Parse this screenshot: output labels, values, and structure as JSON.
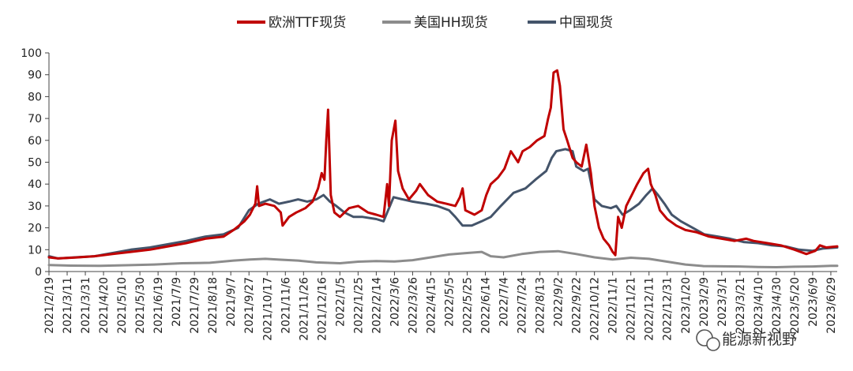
{
  "chart_data": {
    "type": "line",
    "title": "",
    "xlabel": "",
    "ylabel": "",
    "ylim": [
      0,
      100
    ],
    "y_ticks": [
      0,
      10,
      20,
      30,
      40,
      50,
      60,
      70,
      80,
      90,
      100
    ],
    "x_range": [
      "2021-02-19",
      "2023-07-06"
    ],
    "x_tick_labels": [
      "2021/2/19",
      "2021/3/11",
      "2021/3/31",
      "2021/4/20",
      "2021/5/10",
      "2021/5/30",
      "2021/6/19",
      "2021/7/9",
      "2021/7/29",
      "2021/8/18",
      "2021/9/7",
      "2021/9/27",
      "2021/10/17",
      "2021/11/6",
      "2021/11/26",
      "2021/12/16",
      "2022/1/5",
      "2022/1/25",
      "2022/2/14",
      "2022/3/6",
      "2022/3/26",
      "2022/4/15",
      "2022/5/5",
      "2022/5/25",
      "2022/6/14",
      "2022/7/4",
      "2022/7/24",
      "2022/8/13",
      "2022/9/2",
      "2022/9/22",
      "2022/10/12",
      "2022/11/1",
      "2022/11/21",
      "2022/12/11",
      "2022/12/31",
      "2023/1/20",
      "2023/2/9",
      "2023/3/1",
      "2023/3/21",
      "2023/4/10",
      "2023/4/30",
      "2023/5/20",
      "2023/6/9",
      "2023/6/29"
    ],
    "legend_position": "top-center",
    "grid": false,
    "series": [
      {
        "name": "欧洲TTF现货",
        "color": "#c00000",
        "points": [
          [
            "2021-02-19",
            6.5
          ],
          [
            "2021-03-01",
            6.0
          ],
          [
            "2021-03-20",
            6.4
          ],
          [
            "2021-04-10",
            7.0
          ],
          [
            "2021-04-30",
            8.0
          ],
          [
            "2021-05-20",
            9.0
          ],
          [
            "2021-06-10",
            10.0
          ],
          [
            "2021-06-30",
            11.5
          ],
          [
            "2021-07-20",
            13.0
          ],
          [
            "2021-08-10",
            15.0
          ],
          [
            "2021-08-30",
            16.0
          ],
          [
            "2021-09-10",
            19.0
          ],
          [
            "2021-09-22",
            23.0
          ],
          [
            "2021-09-28",
            26.0
          ],
          [
            "2021-10-04",
            31.0
          ],
          [
            "2021-10-06",
            39.0
          ],
          [
            "2021-10-08",
            30.0
          ],
          [
            "2021-10-15",
            31.0
          ],
          [
            "2021-10-25",
            30.0
          ],
          [
            "2021-11-01",
            27.0
          ],
          [
            "2021-11-03",
            21.0
          ],
          [
            "2021-11-10",
            25.0
          ],
          [
            "2021-11-18",
            27.0
          ],
          [
            "2021-11-28",
            29.0
          ],
          [
            "2021-12-06",
            32.0
          ],
          [
            "2021-12-12",
            38.0
          ],
          [
            "2021-12-16",
            45.0
          ],
          [
            "2021-12-19",
            42.0
          ],
          [
            "2021-12-21",
            60.0
          ],
          [
            "2021-12-23",
            74.0
          ],
          [
            "2021-12-26",
            35.0
          ],
          [
            "2021-12-30",
            27.0
          ],
          [
            "2022-01-05",
            25.0
          ],
          [
            "2022-01-15",
            29.0
          ],
          [
            "2022-01-25",
            30.0
          ],
          [
            "2022-02-05",
            27.0
          ],
          [
            "2022-02-14",
            26.0
          ],
          [
            "2022-02-22",
            25.0
          ],
          [
            "2022-02-26",
            40.0
          ],
          [
            "2022-02-28",
            30.0
          ],
          [
            "2022-03-03",
            60.0
          ],
          [
            "2022-03-07",
            69.0
          ],
          [
            "2022-03-10",
            46.0
          ],
          [
            "2022-03-15",
            38.0
          ],
          [
            "2022-03-22",
            33.0
          ],
          [
            "2022-03-30",
            37.0
          ],
          [
            "2022-04-03",
            40.0
          ],
          [
            "2022-04-12",
            35.0
          ],
          [
            "2022-04-22",
            32.0
          ],
          [
            "2022-05-02",
            31.0
          ],
          [
            "2022-05-12",
            30.0
          ],
          [
            "2022-05-17",
            34.0
          ],
          [
            "2022-05-20",
            38.0
          ],
          [
            "2022-05-23",
            28.0
          ],
          [
            "2022-06-02",
            26.0
          ],
          [
            "2022-06-10",
            28.0
          ],
          [
            "2022-06-15",
            35.0
          ],
          [
            "2022-06-20",
            40.0
          ],
          [
            "2022-06-28",
            43.0
          ],
          [
            "2022-07-05",
            47.0
          ],
          [
            "2022-07-12",
            55.0
          ],
          [
            "2022-07-20",
            50.0
          ],
          [
            "2022-07-25",
            55.0
          ],
          [
            "2022-08-02",
            57.0
          ],
          [
            "2022-08-10",
            60.0
          ],
          [
            "2022-08-18",
            62.0
          ],
          [
            "2022-08-22",
            70.0
          ],
          [
            "2022-08-25",
            75.0
          ],
          [
            "2022-08-28",
            91.0
          ],
          [
            "2022-09-01",
            92.0
          ],
          [
            "2022-09-04",
            85.0
          ],
          [
            "2022-09-08",
            65.0
          ],
          [
            "2022-09-12",
            60.0
          ],
          [
            "2022-09-18",
            52.0
          ],
          [
            "2022-09-22",
            50.0
          ],
          [
            "2022-09-28",
            48.0
          ],
          [
            "2022-10-03",
            58.0
          ],
          [
            "2022-10-08",
            45.0
          ],
          [
            "2022-10-12",
            30.0
          ],
          [
            "2022-10-17",
            20.0
          ],
          [
            "2022-10-22",
            15.0
          ],
          [
            "2022-10-28",
            12.0
          ],
          [
            "2022-11-01",
            9.0
          ],
          [
            "2022-11-04",
            7.5
          ],
          [
            "2022-11-07",
            25.0
          ],
          [
            "2022-11-11",
            20.0
          ],
          [
            "2022-11-16",
            30.0
          ],
          [
            "2022-11-22",
            35.0
          ],
          [
            "2022-11-28",
            40.0
          ],
          [
            "2022-12-05",
            45.0
          ],
          [
            "2022-12-10",
            47.0
          ],
          [
            "2022-12-13",
            40.0
          ],
          [
            "2022-12-18",
            35.0
          ],
          [
            "2022-12-23",
            28.0
          ],
          [
            "2022-12-31",
            24.0
          ],
          [
            "2023-01-10",
            21.0
          ],
          [
            "2023-01-20",
            19.0
          ],
          [
            "2023-02-01",
            18.0
          ],
          [
            "2023-02-15",
            16.0
          ],
          [
            "2023-03-01",
            15.0
          ],
          [
            "2023-03-15",
            14.0
          ],
          [
            "2023-03-28",
            15.0
          ],
          [
            "2023-04-05",
            14.0
          ],
          [
            "2023-04-20",
            13.0
          ],
          [
            "2023-05-05",
            12.0
          ],
          [
            "2023-05-20",
            10.0
          ],
          [
            "2023-06-02",
            8.0
          ],
          [
            "2023-06-12",
            9.5
          ],
          [
            "2023-06-17",
            12.0
          ],
          [
            "2023-06-24",
            11.0
          ],
          [
            "2023-07-06",
            11.5
          ]
        ]
      },
      {
        "name": "美国HH现货",
        "color": "#8c8c8c",
        "points": [
          [
            "2021-02-19",
            3.0
          ],
          [
            "2021-03-15",
            2.7
          ],
          [
            "2021-04-15",
            2.6
          ],
          [
            "2021-05-15",
            2.9
          ],
          [
            "2021-06-15",
            3.2
          ],
          [
            "2021-07-15",
            3.8
          ],
          [
            "2021-08-15",
            4.0
          ],
          [
            "2021-09-10",
            5.0
          ],
          [
            "2021-09-28",
            5.5
          ],
          [
            "2021-10-15",
            5.8
          ],
          [
            "2021-11-01",
            5.4
          ],
          [
            "2021-11-20",
            5.0
          ],
          [
            "2021-12-10",
            4.2
          ],
          [
            "2022-01-05",
            3.8
          ],
          [
            "2022-01-25",
            4.5
          ],
          [
            "2022-02-14",
            4.8
          ],
          [
            "2022-03-06",
            4.6
          ],
          [
            "2022-03-26",
            5.2
          ],
          [
            "2022-04-15",
            6.5
          ],
          [
            "2022-05-05",
            7.8
          ],
          [
            "2022-05-25",
            8.5
          ],
          [
            "2022-06-10",
            9.0
          ],
          [
            "2022-06-20",
            7.0
          ],
          [
            "2022-07-04",
            6.5
          ],
          [
            "2022-07-24",
            8.0
          ],
          [
            "2022-08-13",
            9.0
          ],
          [
            "2022-09-02",
            9.3
          ],
          [
            "2022-09-22",
            8.0
          ],
          [
            "2022-10-12",
            6.5
          ],
          [
            "2022-11-01",
            5.5
          ],
          [
            "2022-11-21",
            6.3
          ],
          [
            "2022-12-11",
            5.8
          ],
          [
            "2022-12-31",
            4.5
          ],
          [
            "2023-01-20",
            3.2
          ],
          [
            "2023-02-09",
            2.5
          ],
          [
            "2023-03-01",
            2.4
          ],
          [
            "2023-03-21",
            2.3
          ],
          [
            "2023-04-10",
            2.1
          ],
          [
            "2023-04-30",
            2.0
          ],
          [
            "2023-05-20",
            2.2
          ],
          [
            "2023-06-09",
            2.3
          ],
          [
            "2023-06-29",
            2.6
          ],
          [
            "2023-07-06",
            2.6
          ]
        ]
      },
      {
        "name": "中国现货",
        "color": "#44546a",
        "points": [
          [
            "2021-02-19",
            7.0
          ],
          [
            "2021-03-01",
            6.0
          ],
          [
            "2021-03-20",
            6.5
          ],
          [
            "2021-04-10",
            7.0
          ],
          [
            "2021-04-30",
            8.5
          ],
          [
            "2021-05-20",
            10.0
          ],
          [
            "2021-06-10",
            11.0
          ],
          [
            "2021-06-30",
            12.5
          ],
          [
            "2021-07-20",
            14.0
          ],
          [
            "2021-08-10",
            16.0
          ],
          [
            "2021-08-30",
            17.0
          ],
          [
            "2021-09-15",
            20.0
          ],
          [
            "2021-09-27",
            28.0
          ],
          [
            "2021-10-07",
            31.0
          ],
          [
            "2021-10-20",
            33.0
          ],
          [
            "2021-10-30",
            31.0
          ],
          [
            "2021-11-10",
            32.0
          ],
          [
            "2021-11-20",
            33.0
          ],
          [
            "2021-11-30",
            32.0
          ],
          [
            "2021-12-10",
            33.0
          ],
          [
            "2021-12-18",
            35.0
          ],
          [
            "2021-12-25",
            32.0
          ],
          [
            "2022-01-01",
            30.0
          ],
          [
            "2022-01-10",
            27.0
          ],
          [
            "2022-01-20",
            25.0
          ],
          [
            "2022-01-30",
            25.0
          ],
          [
            "2022-02-14",
            24.0
          ],
          [
            "2022-02-22",
            23.0
          ],
          [
            "2022-03-01",
            30.0
          ],
          [
            "2022-03-05",
            34.0
          ],
          [
            "2022-03-15",
            33.0
          ],
          [
            "2022-03-26",
            32.0
          ],
          [
            "2022-04-10",
            31.0
          ],
          [
            "2022-04-22",
            30.0
          ],
          [
            "2022-05-05",
            28.0
          ],
          [
            "2022-05-12",
            25.0
          ],
          [
            "2022-05-20",
            21.0
          ],
          [
            "2022-05-30",
            21.0
          ],
          [
            "2022-06-10",
            23.0
          ],
          [
            "2022-06-20",
            25.0
          ],
          [
            "2022-07-01",
            30.0
          ],
          [
            "2022-07-15",
            36.0
          ],
          [
            "2022-07-28",
            38.0
          ],
          [
            "2022-08-08",
            42.0
          ],
          [
            "2022-08-20",
            46.0
          ],
          [
            "2022-08-26",
            52.0
          ],
          [
            "2022-08-31",
            55.0
          ],
          [
            "2022-09-10",
            56.0
          ],
          [
            "2022-09-18",
            55.0
          ],
          [
            "2022-09-22",
            48.0
          ],
          [
            "2022-09-30",
            46.0
          ],
          [
            "2022-10-05",
            47.0
          ],
          [
            "2022-10-12",
            33.0
          ],
          [
            "2022-10-20",
            30.0
          ],
          [
            "2022-10-30",
            29.0
          ],
          [
            "2022-11-05",
            30.0
          ],
          [
            "2022-11-12",
            26.0
          ],
          [
            "2022-11-20",
            28.0
          ],
          [
            "2022-11-30",
            31.0
          ],
          [
            "2022-12-08",
            35.0
          ],
          [
            "2022-12-15",
            38.0
          ],
          [
            "2022-12-21",
            35.0
          ],
          [
            "2022-12-28",
            31.0
          ],
          [
            "2023-01-05",
            26.0
          ],
          [
            "2023-01-15",
            23.0
          ],
          [
            "2023-01-28",
            20.0
          ],
          [
            "2023-02-10",
            17.0
          ],
          [
            "2023-02-25",
            16.0
          ],
          [
            "2023-03-10",
            15.0
          ],
          [
            "2023-03-25",
            13.5
          ],
          [
            "2023-04-10",
            13.0
          ],
          [
            "2023-04-25",
            12.0
          ],
          [
            "2023-05-10",
            11.5
          ],
          [
            "2023-05-25",
            10.0
          ],
          [
            "2023-06-09",
            9.5
          ],
          [
            "2023-06-20",
            10.5
          ],
          [
            "2023-07-06",
            11.0
          ]
        ]
      }
    ]
  },
  "watermark": {
    "text": "能源新视野"
  }
}
